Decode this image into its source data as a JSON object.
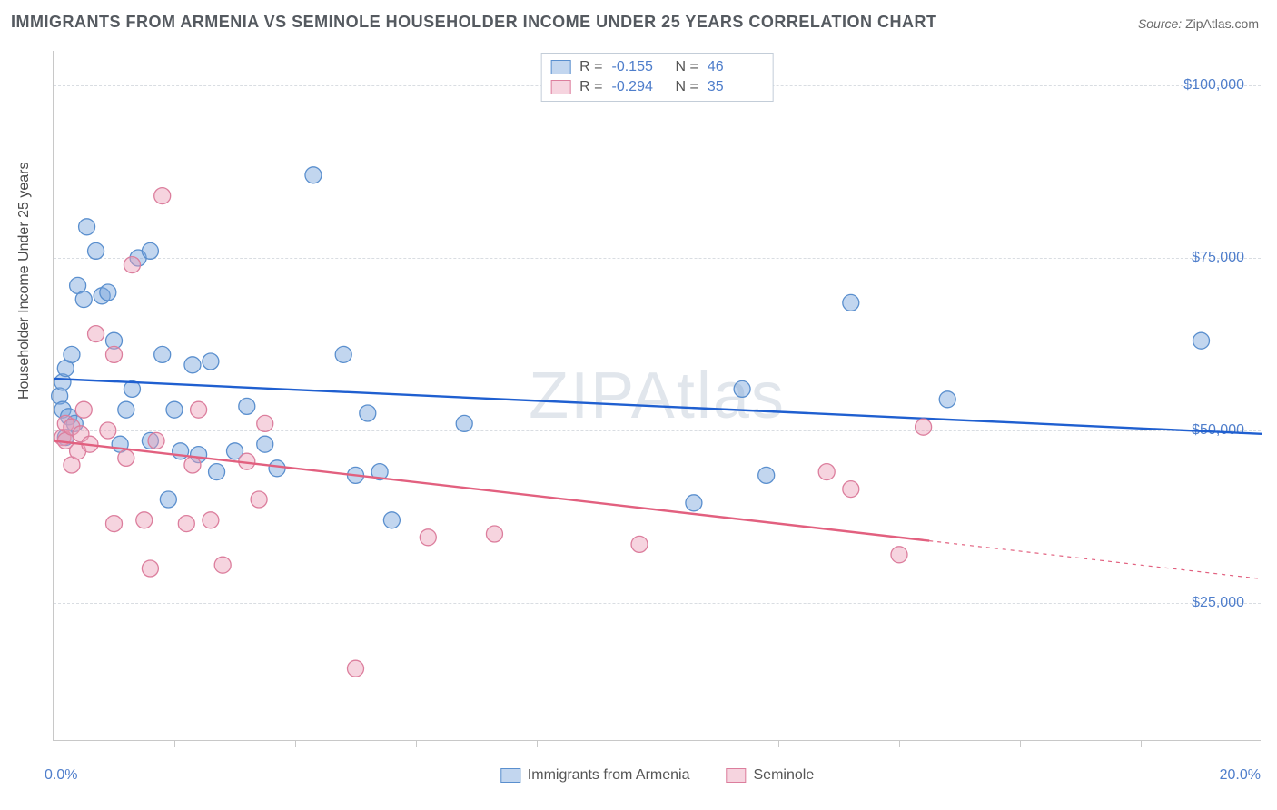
{
  "title": "IMMIGRANTS FROM ARMENIA VS SEMINOLE HOUSEHOLDER INCOME UNDER 25 YEARS CORRELATION CHART",
  "source_label": "Source:",
  "source_value": "ZipAtlas.com",
  "watermark": "ZIPAtlas",
  "y_axis_title": "Householder Income Under 25 years",
  "chart": {
    "type": "scatter",
    "background_color": "#ffffff",
    "grid_color": "#d9dde2",
    "axis_color": "#c8c8c8",
    "tick_label_color": "#4f7ecb",
    "xlim": [
      0,
      20
    ],
    "ylim": [
      5000,
      105000
    ],
    "x_ticks": [
      0,
      2,
      4,
      6,
      8,
      10,
      12,
      14,
      16,
      18,
      20
    ],
    "x_min_label": "0.0%",
    "x_max_label": "20.0%",
    "y_gridlines": [
      25000,
      50000,
      75000,
      100000
    ],
    "y_tick_labels": [
      "$25,000",
      "$50,000",
      "$75,000",
      "$100,000"
    ],
    "marker_radius": 9,
    "marker_stroke_width": 1.3,
    "trend_line_width": 2.4
  },
  "series": [
    {
      "name": "Immigrants from Armenia",
      "color_fill": "rgba(120,165,220,0.45)",
      "color_stroke": "#5a8fce",
      "trend_color": "#1f5fd0",
      "R": "-0.155",
      "N": "46",
      "trend": {
        "x1": 0,
        "y1": 57500,
        "x2": 20,
        "y2": 49500,
        "dash_from_x": null
      },
      "points": [
        {
          "x": 0.1,
          "y": 55000
        },
        {
          "x": 0.15,
          "y": 57000
        },
        {
          "x": 0.15,
          "y": 53000
        },
        {
          "x": 0.2,
          "y": 49000
        },
        {
          "x": 0.2,
          "y": 59000
        },
        {
          "x": 0.25,
          "y": 52000
        },
        {
          "x": 0.3,
          "y": 61000
        },
        {
          "x": 0.35,
          "y": 51000
        },
        {
          "x": 0.4,
          "y": 71000
        },
        {
          "x": 0.5,
          "y": 69000
        },
        {
          "x": 0.55,
          "y": 79500
        },
        {
          "x": 0.7,
          "y": 76000
        },
        {
          "x": 0.8,
          "y": 69500
        },
        {
          "x": 0.9,
          "y": 70000
        },
        {
          "x": 1.0,
          "y": 63000
        },
        {
          "x": 1.1,
          "y": 48000
        },
        {
          "x": 1.2,
          "y": 53000
        },
        {
          "x": 1.4,
          "y": 75000
        },
        {
          "x": 1.6,
          "y": 76000
        },
        {
          "x": 1.6,
          "y": 48500
        },
        {
          "x": 1.8,
          "y": 61000
        },
        {
          "x": 1.9,
          "y": 40000
        },
        {
          "x": 2.0,
          "y": 53000
        },
        {
          "x": 2.1,
          "y": 47000
        },
        {
          "x": 2.3,
          "y": 59500
        },
        {
          "x": 2.4,
          "y": 46500
        },
        {
          "x": 2.6,
          "y": 60000
        },
        {
          "x": 2.7,
          "y": 44000
        },
        {
          "x": 3.0,
          "y": 47000
        },
        {
          "x": 3.2,
          "y": 53500
        },
        {
          "x": 3.5,
          "y": 48000
        },
        {
          "x": 3.7,
          "y": 44500
        },
        {
          "x": 4.3,
          "y": 87000
        },
        {
          "x": 4.8,
          "y": 61000
        },
        {
          "x": 5.0,
          "y": 43500
        },
        {
          "x": 5.2,
          "y": 52500
        },
        {
          "x": 5.4,
          "y": 44000
        },
        {
          "x": 5.6,
          "y": 37000
        },
        {
          "x": 6.8,
          "y": 51000
        },
        {
          "x": 10.6,
          "y": 39500
        },
        {
          "x": 11.4,
          "y": 56000
        },
        {
          "x": 11.8,
          "y": 43500
        },
        {
          "x": 13.2,
          "y": 68500
        },
        {
          "x": 14.8,
          "y": 54500
        },
        {
          "x": 19.0,
          "y": 63000
        },
        {
          "x": 1.3,
          "y": 56000
        }
      ]
    },
    {
      "name": "Seminole",
      "color_fill": "rgba(235,160,185,0.45)",
      "color_stroke": "#dc7e9d",
      "trend_color": "#e2607f",
      "R": "-0.294",
      "N": "35",
      "trend": {
        "x1": 0,
        "y1": 48500,
        "x2": 20,
        "y2": 28500,
        "dash_from_x": 14.5
      },
      "points": [
        {
          "x": 0.15,
          "y": 49000
        },
        {
          "x": 0.2,
          "y": 48500
        },
        {
          "x": 0.2,
          "y": 51000
        },
        {
          "x": 0.3,
          "y": 50500
        },
        {
          "x": 0.3,
          "y": 45000
        },
        {
          "x": 0.4,
          "y": 47000
        },
        {
          "x": 0.45,
          "y": 49500
        },
        {
          "x": 0.5,
          "y": 53000
        },
        {
          "x": 0.6,
          "y": 48000
        },
        {
          "x": 0.7,
          "y": 64000
        },
        {
          "x": 0.9,
          "y": 50000
        },
        {
          "x": 1.0,
          "y": 61000
        },
        {
          "x": 1.2,
          "y": 46000
        },
        {
          "x": 1.3,
          "y": 74000
        },
        {
          "x": 1.5,
          "y": 37000
        },
        {
          "x": 1.6,
          "y": 30000
        },
        {
          "x": 1.7,
          "y": 48500
        },
        {
          "x": 1.8,
          "y": 84000
        },
        {
          "x": 2.2,
          "y": 36500
        },
        {
          "x": 2.3,
          "y": 45000
        },
        {
          "x": 2.4,
          "y": 53000
        },
        {
          "x": 2.6,
          "y": 37000
        },
        {
          "x": 2.8,
          "y": 30500
        },
        {
          "x": 3.2,
          "y": 45500
        },
        {
          "x": 3.4,
          "y": 40000
        },
        {
          "x": 3.5,
          "y": 51000
        },
        {
          "x": 5.0,
          "y": 15500
        },
        {
          "x": 6.2,
          "y": 34500
        },
        {
          "x": 7.3,
          "y": 35000
        },
        {
          "x": 9.7,
          "y": 33500
        },
        {
          "x": 12.8,
          "y": 44000
        },
        {
          "x": 13.2,
          "y": 41500
        },
        {
          "x": 14.0,
          "y": 32000
        },
        {
          "x": 14.4,
          "y": 50500
        },
        {
          "x": 1.0,
          "y": 36500
        }
      ]
    }
  ],
  "stats_labels": {
    "R": "R =",
    "N": "N ="
  },
  "legend_labels": [
    "Immigrants from Armenia",
    "Seminole"
  ]
}
